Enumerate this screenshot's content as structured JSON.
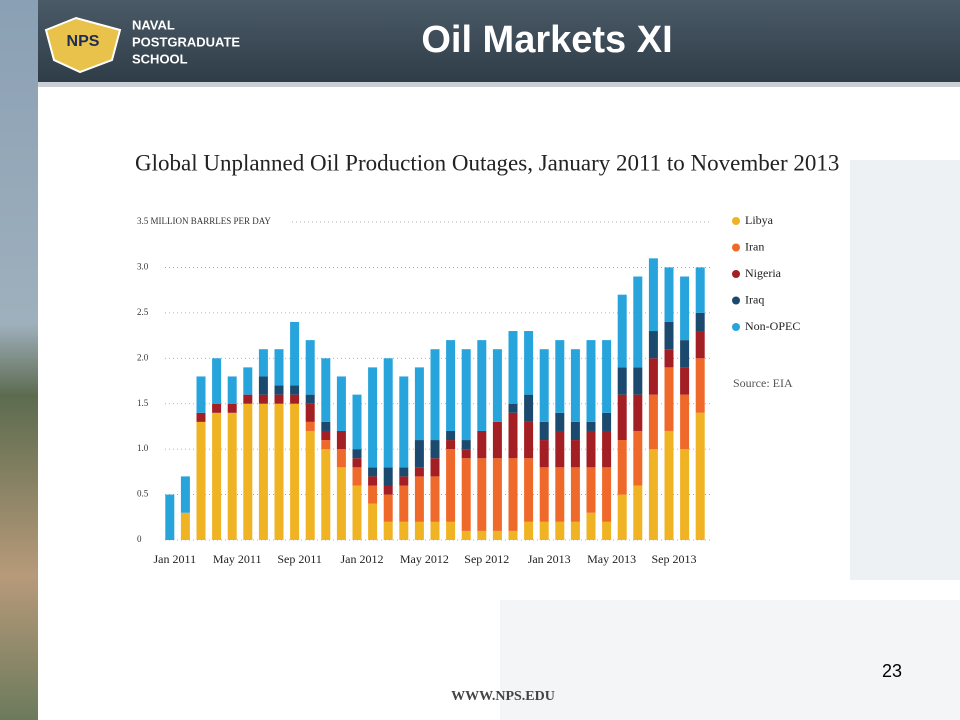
{
  "slide": {
    "school": [
      "NAVAL",
      "POSTGRADUATE",
      "SCHOOL"
    ],
    "logo": "NPS",
    "title": "Oil Markets XI",
    "page_number": "23",
    "footer": "WWW.NPS.EDU"
  },
  "chart_data": {
    "type": "bar",
    "stacked": true,
    "title": "Global Unplanned Oil Production Outages, January 2011 to November 2013",
    "source": "Source: EIA",
    "categories": [
      "Jan 2011",
      null,
      null,
      null,
      "May 2011",
      null,
      null,
      null,
      "Sep 2011",
      null,
      null,
      null,
      "Jan 2012",
      null,
      null,
      null,
      "May 2012",
      null,
      null,
      null,
      "Sep 2012",
      null,
      null,
      null,
      "Jan 2013",
      null,
      null,
      null,
      "May 2013",
      null,
      null,
      null,
      "Sep 2013",
      null,
      null
    ],
    "series": [
      {
        "name": "Libya",
        "color": "#f0b323",
        "values": [
          0,
          0.3,
          1.3,
          1.4,
          1.4,
          1.5,
          1.5,
          1.5,
          1.5,
          1.2,
          1.0,
          0.8,
          0.6,
          0.4,
          0.2,
          0.2,
          0.2,
          0.2,
          0.2,
          0.1,
          0.1,
          0.1,
          0.1,
          0.2,
          0.2,
          0.2,
          0.2,
          0.3,
          0.2,
          0.5,
          0.6,
          1.0,
          1.2,
          1.0,
          1.4
        ]
      },
      {
        "name": "Iran",
        "color": "#ef6a2a",
        "values": [
          0,
          0,
          0,
          0,
          0,
          0,
          0,
          0,
          0,
          0.1,
          0.1,
          0.2,
          0.2,
          0.2,
          0.3,
          0.4,
          0.5,
          0.5,
          0.8,
          0.8,
          0.8,
          0.8,
          0.8,
          0.7,
          0.6,
          0.6,
          0.6,
          0.5,
          0.6,
          0.6,
          0.6,
          0.6,
          0.7,
          0.6,
          0.6
        ]
      },
      {
        "name": "Nigeria",
        "color": "#a31f24",
        "values": [
          0,
          0,
          0.1,
          0.1,
          0.1,
          0.1,
          0.1,
          0.1,
          0.1,
          0.2,
          0.1,
          0.2,
          0.1,
          0.1,
          0.1,
          0.1,
          0.1,
          0.2,
          0.1,
          0.1,
          0.3,
          0.4,
          0.5,
          0.4,
          0.3,
          0.4,
          0.3,
          0.4,
          0.4,
          0.5,
          0.4,
          0.4,
          0.2,
          0.3,
          0.3
        ]
      },
      {
        "name": "Iraq",
        "color": "#1c4a6e",
        "values": [
          0,
          0,
          0,
          0,
          0,
          0,
          0.2,
          0.1,
          0.1,
          0.1,
          0.1,
          0,
          0.1,
          0.1,
          0.2,
          0.1,
          0.3,
          0.2,
          0.1,
          0.1,
          0,
          0,
          0.1,
          0.3,
          0.2,
          0.2,
          0.2,
          0.1,
          0.2,
          0.3,
          0.3,
          0.3,
          0.3,
          0.3,
          0.2
        ]
      },
      {
        "name": "Non-OPEC",
        "color": "#27a4dc",
        "values": [
          0.5,
          0.4,
          0.4,
          0.5,
          0.3,
          0.3,
          0.3,
          0.4,
          0.7,
          0.6,
          0.7,
          0.6,
          0.6,
          1.1,
          1.2,
          1.0,
          0.8,
          1.0,
          1.0,
          1.0,
          1.0,
          0.8,
          0.8,
          0.7,
          0.8,
          0.8,
          0.8,
          0.9,
          0.8,
          0.8,
          1.0,
          0.8,
          0.6,
          0.7,
          0.5
        ]
      }
    ],
    "ylim": [
      0,
      3.5
    ],
    "yticks": [
      0,
      {
        "value": 0.5,
        "label": "0.5"
      },
      {
        "value": 1,
        "label": "1.0"
      },
      {
        "value": 1.5,
        "label": "1.5"
      },
      {
        "value": 2,
        "label": "2.0"
      },
      {
        "value": 2.5,
        "label": "2.5"
      },
      {
        "value": 3,
        "label": "3.0"
      },
      {
        "value": 3.5,
        "label": "3.5 MILLION BARRLES PER DAY"
      }
    ],
    "grid": true
  }
}
